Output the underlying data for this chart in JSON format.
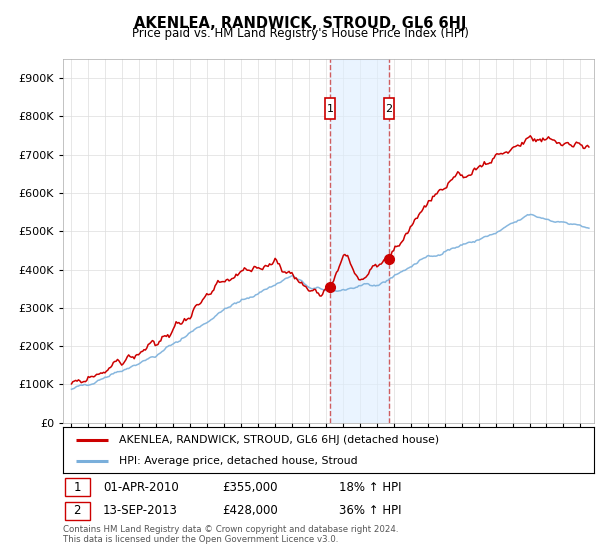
{
  "title": "AKENLEA, RANDWICK, STROUD, GL6 6HJ",
  "subtitle": "Price paid vs. HM Land Registry's House Price Index (HPI)",
  "ytick_values": [
    0,
    100000,
    200000,
    300000,
    400000,
    500000,
    600000,
    700000,
    800000,
    900000
  ],
  "ylim": [
    0,
    950000
  ],
  "xlim_start": 1994.5,
  "xlim_end": 2025.8,
  "red_line_color": "#cc0000",
  "blue_line_color": "#7aafdb",
  "marker1_x": 2010.25,
  "marker1_y": 355000,
  "marker2_x": 2013.71,
  "marker2_y": 428000,
  "shade_color": "#ddeeff",
  "shade_alpha": 0.6,
  "legend_label_red": "AKENLEA, RANDWICK, STROUD, GL6 6HJ (detached house)",
  "legend_label_blue": "HPI: Average price, detached house, Stroud",
  "table_entries": [
    {
      "num": "1",
      "date": "01-APR-2010",
      "price": "£355,000",
      "hpi": "18% ↑ HPI"
    },
    {
      "num": "2",
      "date": "13-SEP-2013",
      "price": "£428,000",
      "hpi": "36% ↑ HPI"
    }
  ],
  "footnote": "Contains HM Land Registry data © Crown copyright and database right 2024.\nThis data is licensed under the Open Government Licence v3.0.",
  "grid_color": "#dddddd"
}
